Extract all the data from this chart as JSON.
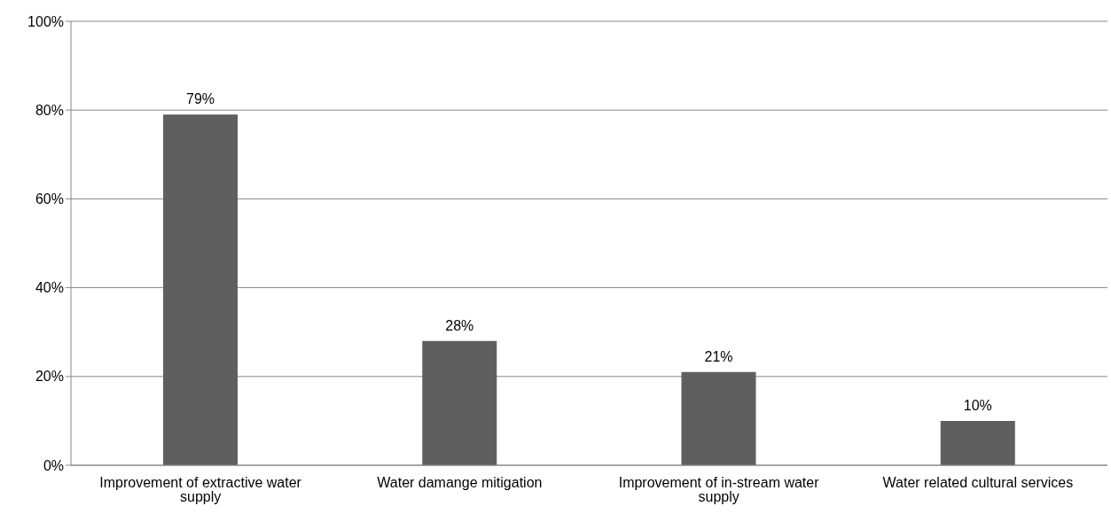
{
  "chart_data": {
    "type": "bar",
    "categories": [
      "Improvement of extractive water supply",
      "Water damange mitigation",
      "Improvement of in-stream water supply",
      "Water related cultural services"
    ],
    "values": [
      79,
      28,
      21,
      10
    ],
    "value_labels": [
      "79%",
      "28%",
      "21%",
      "10%"
    ],
    "color": "#5f5f5f",
    "ylim": [
      0,
      100
    ],
    "yticks": [
      {
        "value": 0,
        "label": "0%"
      },
      {
        "value": 20,
        "label": "20%"
      },
      {
        "value": 40,
        "label": "40%"
      },
      {
        "value": 60,
        "label": "60%"
      },
      {
        "value": 80,
        "label": "80%"
      },
      {
        "value": 100,
        "label": "100%"
      }
    ],
    "grid": "y"
  }
}
